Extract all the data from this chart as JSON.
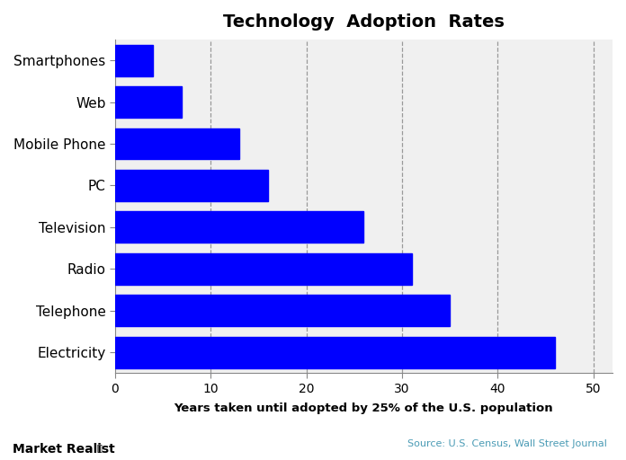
{
  "title": "Technology  Adoption  Rates",
  "categories": [
    "Electricity",
    "Telephone",
    "Radio",
    "Television",
    "PC",
    "Mobile Phone",
    "Web",
    "Smartphones"
  ],
  "values": [
    46,
    35,
    31,
    26,
    16,
    13,
    7,
    4
  ],
  "bar_color": "#0000ff",
  "xlabel": "Years taken until adopted by 25% of the U.S. population",
  "xlim": [
    0,
    52
  ],
  "xticks": [
    0,
    10,
    20,
    30,
    40,
    50
  ],
  "grid_color": "#999999",
  "plot_bg_color": "#f0f0f0",
  "fig_bg_color": "#ffffff",
  "title_fontsize": 14,
  "label_fontsize": 11,
  "tick_fontsize": 10,
  "xlabel_fontsize": 9.5,
  "source_text": "Source: U.S. Census, Wall Street Journal",
  "watermark_text": "Market Realist",
  "bar_height": 0.75
}
